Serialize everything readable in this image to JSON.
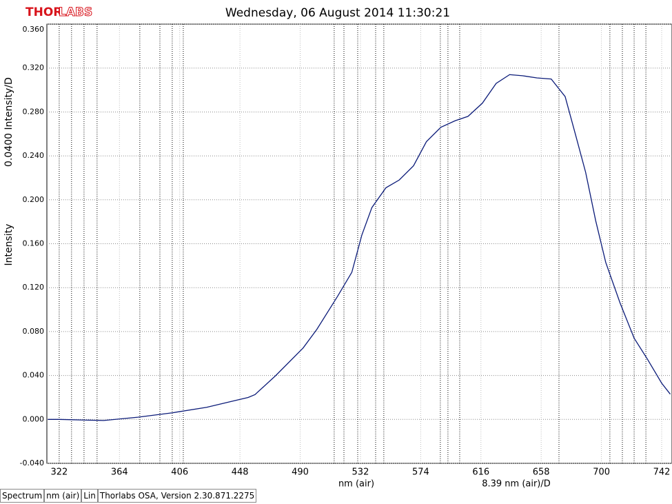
{
  "logo": [
    "THOR",
    "LABS"
  ],
  "chart_data": {
    "type": "line",
    "title": "Wednesday, 06 August 2014 11:30:21",
    "y_label_top": "0.0400 Intensity/D",
    "y_label": "Intensity",
    "x_label": "nm (air)",
    "x_label_scale": "8.39 nm (air)/D",
    "xlim": [
      313.4,
      749.2
    ],
    "ylim": [
      -0.04,
      0.36
    ],
    "xticks": [
      322,
      364,
      406,
      448,
      490,
      532,
      574,
      616,
      658,
      700,
      742
    ],
    "yticks": [
      {
        "value": -0.04,
        "label": "-0.040"
      },
      {
        "value": 0,
        "label": "0.000"
      },
      {
        "value": 0.04,
        "label": "0.040"
      },
      {
        "value": 0.08,
        "label": "0.080"
      },
      {
        "value": 0.12,
        "label": "0.120"
      },
      {
        "value": 0.16,
        "label": "0.160"
      },
      {
        "value": 0.2,
        "label": "0.200"
      },
      {
        "value": 0.24,
        "label": "0.240"
      },
      {
        "value": 0.28,
        "label": "0.280"
      },
      {
        "value": 0.32,
        "label": "0.320"
      },
      {
        "value": 0.36,
        "label": "0.360"
      }
    ],
    "grid": true,
    "marker_lines": [
      322,
      330.6,
      339.3,
      348.4,
      378.2,
      392.2,
      400.8,
      408.5,
      513.7,
      520.5,
      530.1,
      542.6,
      548.3,
      587.7,
      593.0,
      601.2,
      670.4,
      705.9,
      714.6,
      722.8,
      731.0
    ],
    "series": [
      {
        "name": "Spectrum",
        "color": "#0a1a78",
        "x": [
          314,
          322,
          353,
          376.8,
          400.8,
          424.8,
          444,
          453.7,
          458.5,
          473,
          492,
          501.6,
          516,
          526,
          533,
          540,
          549.8,
          559,
          569,
          578,
          588,
          598,
          607,
          617,
          626.6,
          636,
          645,
          655,
          665,
          674.7,
          682,
          689,
          696,
          703,
          713,
          722.8,
          732,
          742,
          748
        ],
        "values": [
          0.0,
          0.0,
          -0.001,
          0.002,
          0.006,
          0.011,
          0.017,
          0.02,
          0.0226,
          0.04,
          0.065,
          0.082,
          0.112,
          0.134,
          0.168,
          0.193,
          0.211,
          0.218,
          0.231,
          0.253,
          0.266,
          0.272,
          0.276,
          0.288,
          0.306,
          0.314,
          0.313,
          0.311,
          0.31,
          0.294,
          0.259,
          0.225,
          0.181,
          0.143,
          0.106,
          0.074,
          0.055,
          0.033,
          0.023
        ]
      }
    ]
  },
  "status_bar": [
    "Spectrum",
    "nm (air)",
    "Lin",
    "Thorlabs OSA, Version 2.30.871.2275"
  ]
}
